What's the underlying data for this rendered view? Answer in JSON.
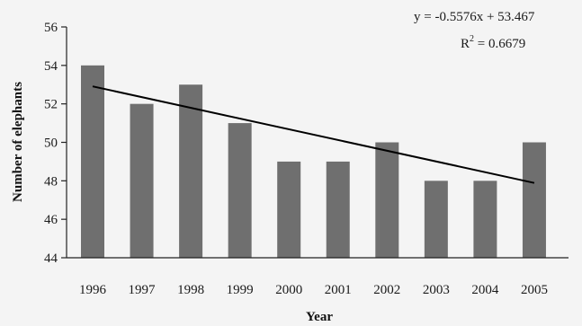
{
  "chart_data": {
    "type": "bar",
    "title": "",
    "xlabel": "Year",
    "ylabel": "Number of elephants",
    "categories": [
      "1996",
      "1997",
      "1998",
      "1999",
      "2000",
      "2001",
      "2002",
      "2003",
      "2004",
      "2005"
    ],
    "values": [
      54,
      52,
      53,
      51,
      49,
      49,
      50,
      48,
      48,
      50
    ],
    "ylim": [
      44,
      56
    ],
    "yticks": [
      44,
      46,
      48,
      50,
      52,
      54,
      56
    ],
    "grid": false,
    "trendline": {
      "slope": -0.5576,
      "intercept": 53.467,
      "equation": "y = -0.5576x + 53.467",
      "r2_prefix": "R",
      "r2_sup": "2",
      "r2_value": " = 0.6679"
    },
    "colors": {
      "bar": "#6f6f6f",
      "line": "#000000",
      "background": "#f4f4f4"
    }
  }
}
